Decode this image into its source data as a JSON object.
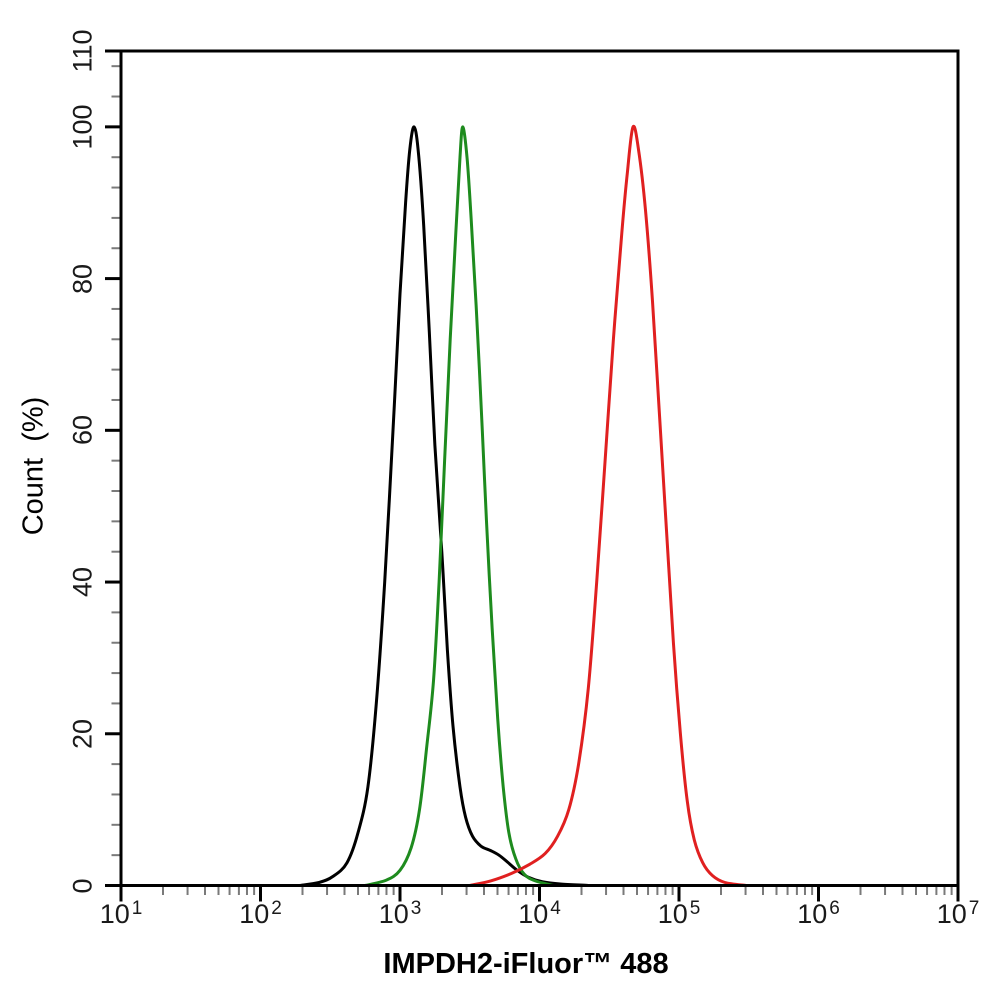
{
  "figure": {
    "background_color": "#ffffff",
    "axis_color": "#000000",
    "minor_tick_color": "#7a7a7a"
  },
  "chart_data": {
    "type": "line",
    "subtype": "flow-cytometry-overlay-histogram",
    "title": "",
    "xlabel": "IMPDH2-iFluor™ 488",
    "ylabel": "Count  (%)",
    "x_scale": "log10",
    "x_log10_range": [
      1,
      7
    ],
    "ylim": [
      0,
      110
    ],
    "grid": false,
    "legend": "none",
    "x_major_ticks_log10": [
      1,
      2,
      3,
      4,
      5,
      6,
      7
    ],
    "x_tick_base": "10",
    "x_minor_ticks": "log-spaced 2-9 per decade",
    "y_major_ticks": [
      0,
      20,
      40,
      60,
      80,
      100,
      110
    ],
    "y_minor_tick_step": 4,
    "series": [
      {
        "name": "black-curve",
        "color": "#000000",
        "peak_x_approx": 1250,
        "peak_y_pct": 100,
        "points_log10x_pct": [
          [
            2.28,
            0
          ],
          [
            2.42,
            0.4
          ],
          [
            2.52,
            1.2
          ],
          [
            2.62,
            3
          ],
          [
            2.7,
            7
          ],
          [
            2.77,
            13
          ],
          [
            2.83,
            24
          ],
          [
            2.89,
            40
          ],
          [
            2.95,
            60
          ],
          [
            3.0,
            78
          ],
          [
            3.04,
            90
          ],
          [
            3.07,
            97
          ],
          [
            3.1,
            100
          ],
          [
            3.13,
            97
          ],
          [
            3.17,
            87
          ],
          [
            3.21,
            73
          ],
          [
            3.25,
            58
          ],
          [
            3.3,
            44
          ],
          [
            3.34,
            31
          ],
          [
            3.38,
            21
          ],
          [
            3.43,
            13
          ],
          [
            3.47,
            9
          ],
          [
            3.52,
            6.5
          ],
          [
            3.58,
            5.2
          ],
          [
            3.65,
            4.6
          ],
          [
            3.71,
            4
          ],
          [
            3.77,
            3.1
          ],
          [
            3.84,
            2
          ],
          [
            3.92,
            1.1
          ],
          [
            4.02,
            0.5
          ],
          [
            4.15,
            0.2
          ],
          [
            4.35,
            0
          ]
        ]
      },
      {
        "name": "green-curve",
        "color": "#1e8b1e",
        "peak_x_approx": 2800,
        "peak_y_pct": 100,
        "points_log10x_pct": [
          [
            2.75,
            0
          ],
          [
            2.9,
            0.7
          ],
          [
            3.0,
            2
          ],
          [
            3.08,
            5
          ],
          [
            3.14,
            10
          ],
          [
            3.19,
            18
          ],
          [
            3.24,
            27
          ],
          [
            3.28,
            40
          ],
          [
            3.32,
            56
          ],
          [
            3.36,
            72
          ],
          [
            3.4,
            86
          ],
          [
            3.43,
            96
          ],
          [
            3.45,
            100
          ],
          [
            3.48,
            96
          ],
          [
            3.51,
            88
          ],
          [
            3.55,
            75
          ],
          [
            3.59,
            60
          ],
          [
            3.62,
            48
          ],
          [
            3.66,
            34
          ],
          [
            3.7,
            22
          ],
          [
            3.74,
            13
          ],
          [
            3.78,
            7
          ],
          [
            3.83,
            3.5
          ],
          [
            3.89,
            1.5
          ],
          [
            3.97,
            0.6
          ],
          [
            4.1,
            0
          ]
        ]
      },
      {
        "name": "red-curve",
        "color": "#e02020",
        "peak_x_approx": 47000,
        "peak_y_pct": 100,
        "points_log10x_pct": [
          [
            3.5,
            0
          ],
          [
            3.65,
            0.6
          ],
          [
            3.8,
            1.6
          ],
          [
            3.93,
            2.8
          ],
          [
            4.04,
            4.2
          ],
          [
            4.13,
            6.5
          ],
          [
            4.21,
            10
          ],
          [
            4.28,
            16
          ],
          [
            4.35,
            26
          ],
          [
            4.41,
            40
          ],
          [
            4.47,
            56
          ],
          [
            4.53,
            72
          ],
          [
            4.59,
            86
          ],
          [
            4.63,
            94
          ],
          [
            4.67,
            100
          ],
          [
            4.71,
            97
          ],
          [
            4.76,
            89
          ],
          [
            4.81,
            77
          ],
          [
            4.86,
            62
          ],
          [
            4.91,
            47
          ],
          [
            4.96,
            32
          ],
          [
            5.01,
            20
          ],
          [
            5.06,
            11
          ],
          [
            5.11,
            6
          ],
          [
            5.17,
            3
          ],
          [
            5.24,
            1.3
          ],
          [
            5.33,
            0.4
          ],
          [
            5.48,
            0
          ]
        ]
      }
    ]
  }
}
